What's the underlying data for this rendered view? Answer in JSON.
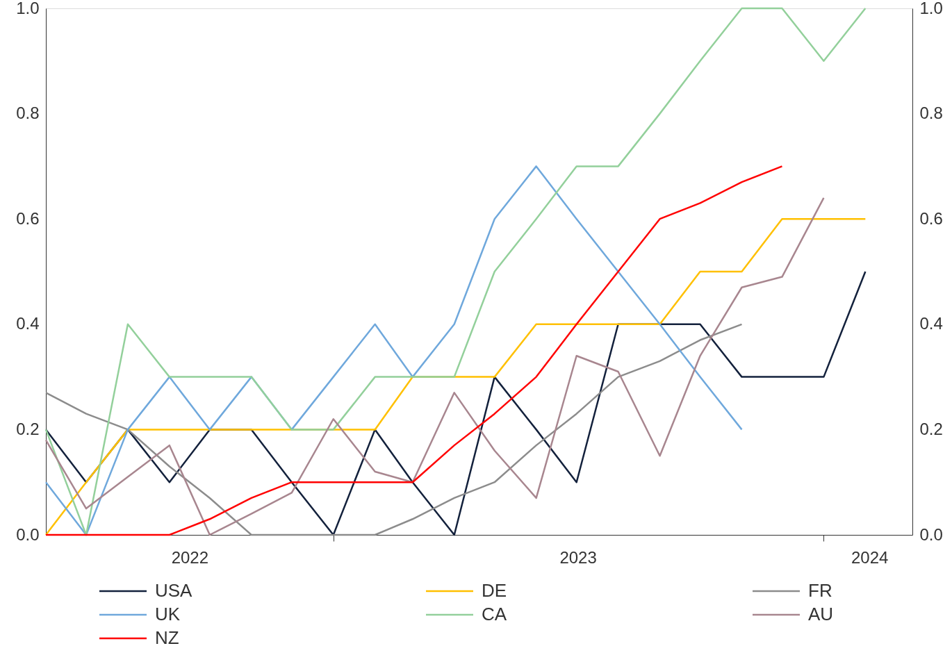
{
  "chart_data": {
    "type": "line",
    "x": [
      "2022-06",
      "2022-07",
      "2022-08",
      "2022-09",
      "2022-10",
      "2022-11",
      "2022-12",
      "2023-01",
      "2023-02",
      "2023-03",
      "2023-04",
      "2023-05",
      "2023-06",
      "2023-07",
      "2023-08",
      "2023-09",
      "2023-10",
      "2023-11",
      "2023-12",
      "2024-01",
      "2024-02"
    ],
    "series": [
      {
        "name": "USA",
        "color": "#13213c",
        "values": [
          0.2,
          0.1,
          0.2,
          0.1,
          0.2,
          0.2,
          0.1,
          0.0,
          0.2,
          0.1,
          0.0,
          0.3,
          0.2,
          0.1,
          0.4,
          0.4,
          0.4,
          0.3,
          0.3,
          0.3,
          0.5
        ]
      },
      {
        "name": "DE",
        "color": "#ffc000",
        "values": [
          0.0,
          0.1,
          0.2,
          0.2,
          0.2,
          0.2,
          0.2,
          0.2,
          0.2,
          0.3,
          0.3,
          0.3,
          0.4,
          0.4,
          0.4,
          0.4,
          0.5,
          0.5,
          0.6,
          0.6,
          0.6
        ]
      },
      {
        "name": "FR",
        "color": "#8c8c8c",
        "values": [
          0.27,
          0.23,
          0.2,
          0.13,
          0.07,
          0.0,
          0.0,
          0.0,
          0.0,
          0.03,
          0.07,
          0.1,
          0.17,
          0.23,
          0.3,
          0.33,
          0.37,
          0.4,
          null,
          null,
          null
        ]
      },
      {
        "name": "UK",
        "color": "#6fa8dc",
        "values": [
          0.1,
          0.0,
          0.2,
          0.3,
          0.2,
          0.3,
          0.2,
          0.3,
          0.4,
          0.3,
          0.4,
          0.6,
          0.7,
          0.6,
          0.5,
          0.4,
          0.3,
          0.2,
          null,
          null,
          null
        ]
      },
      {
        "name": "CA",
        "color": "#93d09b",
        "values": [
          0.2,
          0.0,
          0.4,
          0.3,
          0.3,
          0.3,
          0.2,
          0.2,
          0.3,
          0.3,
          0.3,
          0.5,
          0.6,
          0.7,
          0.7,
          0.8,
          0.9,
          1.0,
          1.0,
          0.9,
          1.0
        ]
      },
      {
        "name": "AU",
        "color": "#a8868f",
        "values": [
          0.18,
          0.05,
          0.11,
          0.17,
          0.0,
          0.04,
          0.08,
          0.22,
          0.12,
          0.1,
          0.27,
          0.16,
          0.07,
          0.34,
          0.31,
          0.15,
          0.34,
          0.47,
          0.49,
          0.64,
          null
        ]
      },
      {
        "name": "NZ",
        "color": "#ff0000",
        "values": [
          0.0,
          0.0,
          0.0,
          0.0,
          0.03,
          0.07,
          0.1,
          0.1,
          0.1,
          0.1,
          0.17,
          0.23,
          0.3,
          0.4,
          0.5,
          0.6,
          0.63,
          0.67,
          0.7,
          null,
          null
        ]
      }
    ],
    "xlim": [
      "2022-06-01",
      "2024-03-07"
    ],
    "xticks": [
      {
        "value": "2022-09-16",
        "label": "2022"
      },
      {
        "value": "2023-01-01",
        "label": null
      },
      {
        "value": "2023-07-02",
        "label": "2023"
      },
      {
        "value": "2024-01-01",
        "label": null
      },
      {
        "value": "2024-02-04",
        "label": "2024"
      }
    ],
    "ylim": [
      0,
      1
    ],
    "yticks": [
      {
        "value": 0,
        "label": "0.0"
      },
      {
        "value": 0.2,
        "label": "0.2"
      },
      {
        "value": 0.4,
        "label": "0.4"
      },
      {
        "value": 0.6,
        "label": "0.6"
      },
      {
        "value": 0.8,
        "label": "0.8"
      },
      {
        "value": 1,
        "label": "1.0"
      }
    ],
    "y2lim": [
      0,
      1
    ],
    "y2ticks": [
      {
        "value": 0,
        "label": "0.0"
      },
      {
        "value": 0.2,
        "label": "0.2"
      },
      {
        "value": 0.4,
        "label": "0.4"
      },
      {
        "value": 0.6,
        "label": "0.6"
      },
      {
        "value": 0.8,
        "label": "0.8"
      },
      {
        "value": 1,
        "label": "1.0"
      }
    ],
    "legend": "bottom",
    "grid": false,
    "line_style": "solid",
    "marker": "none"
  }
}
